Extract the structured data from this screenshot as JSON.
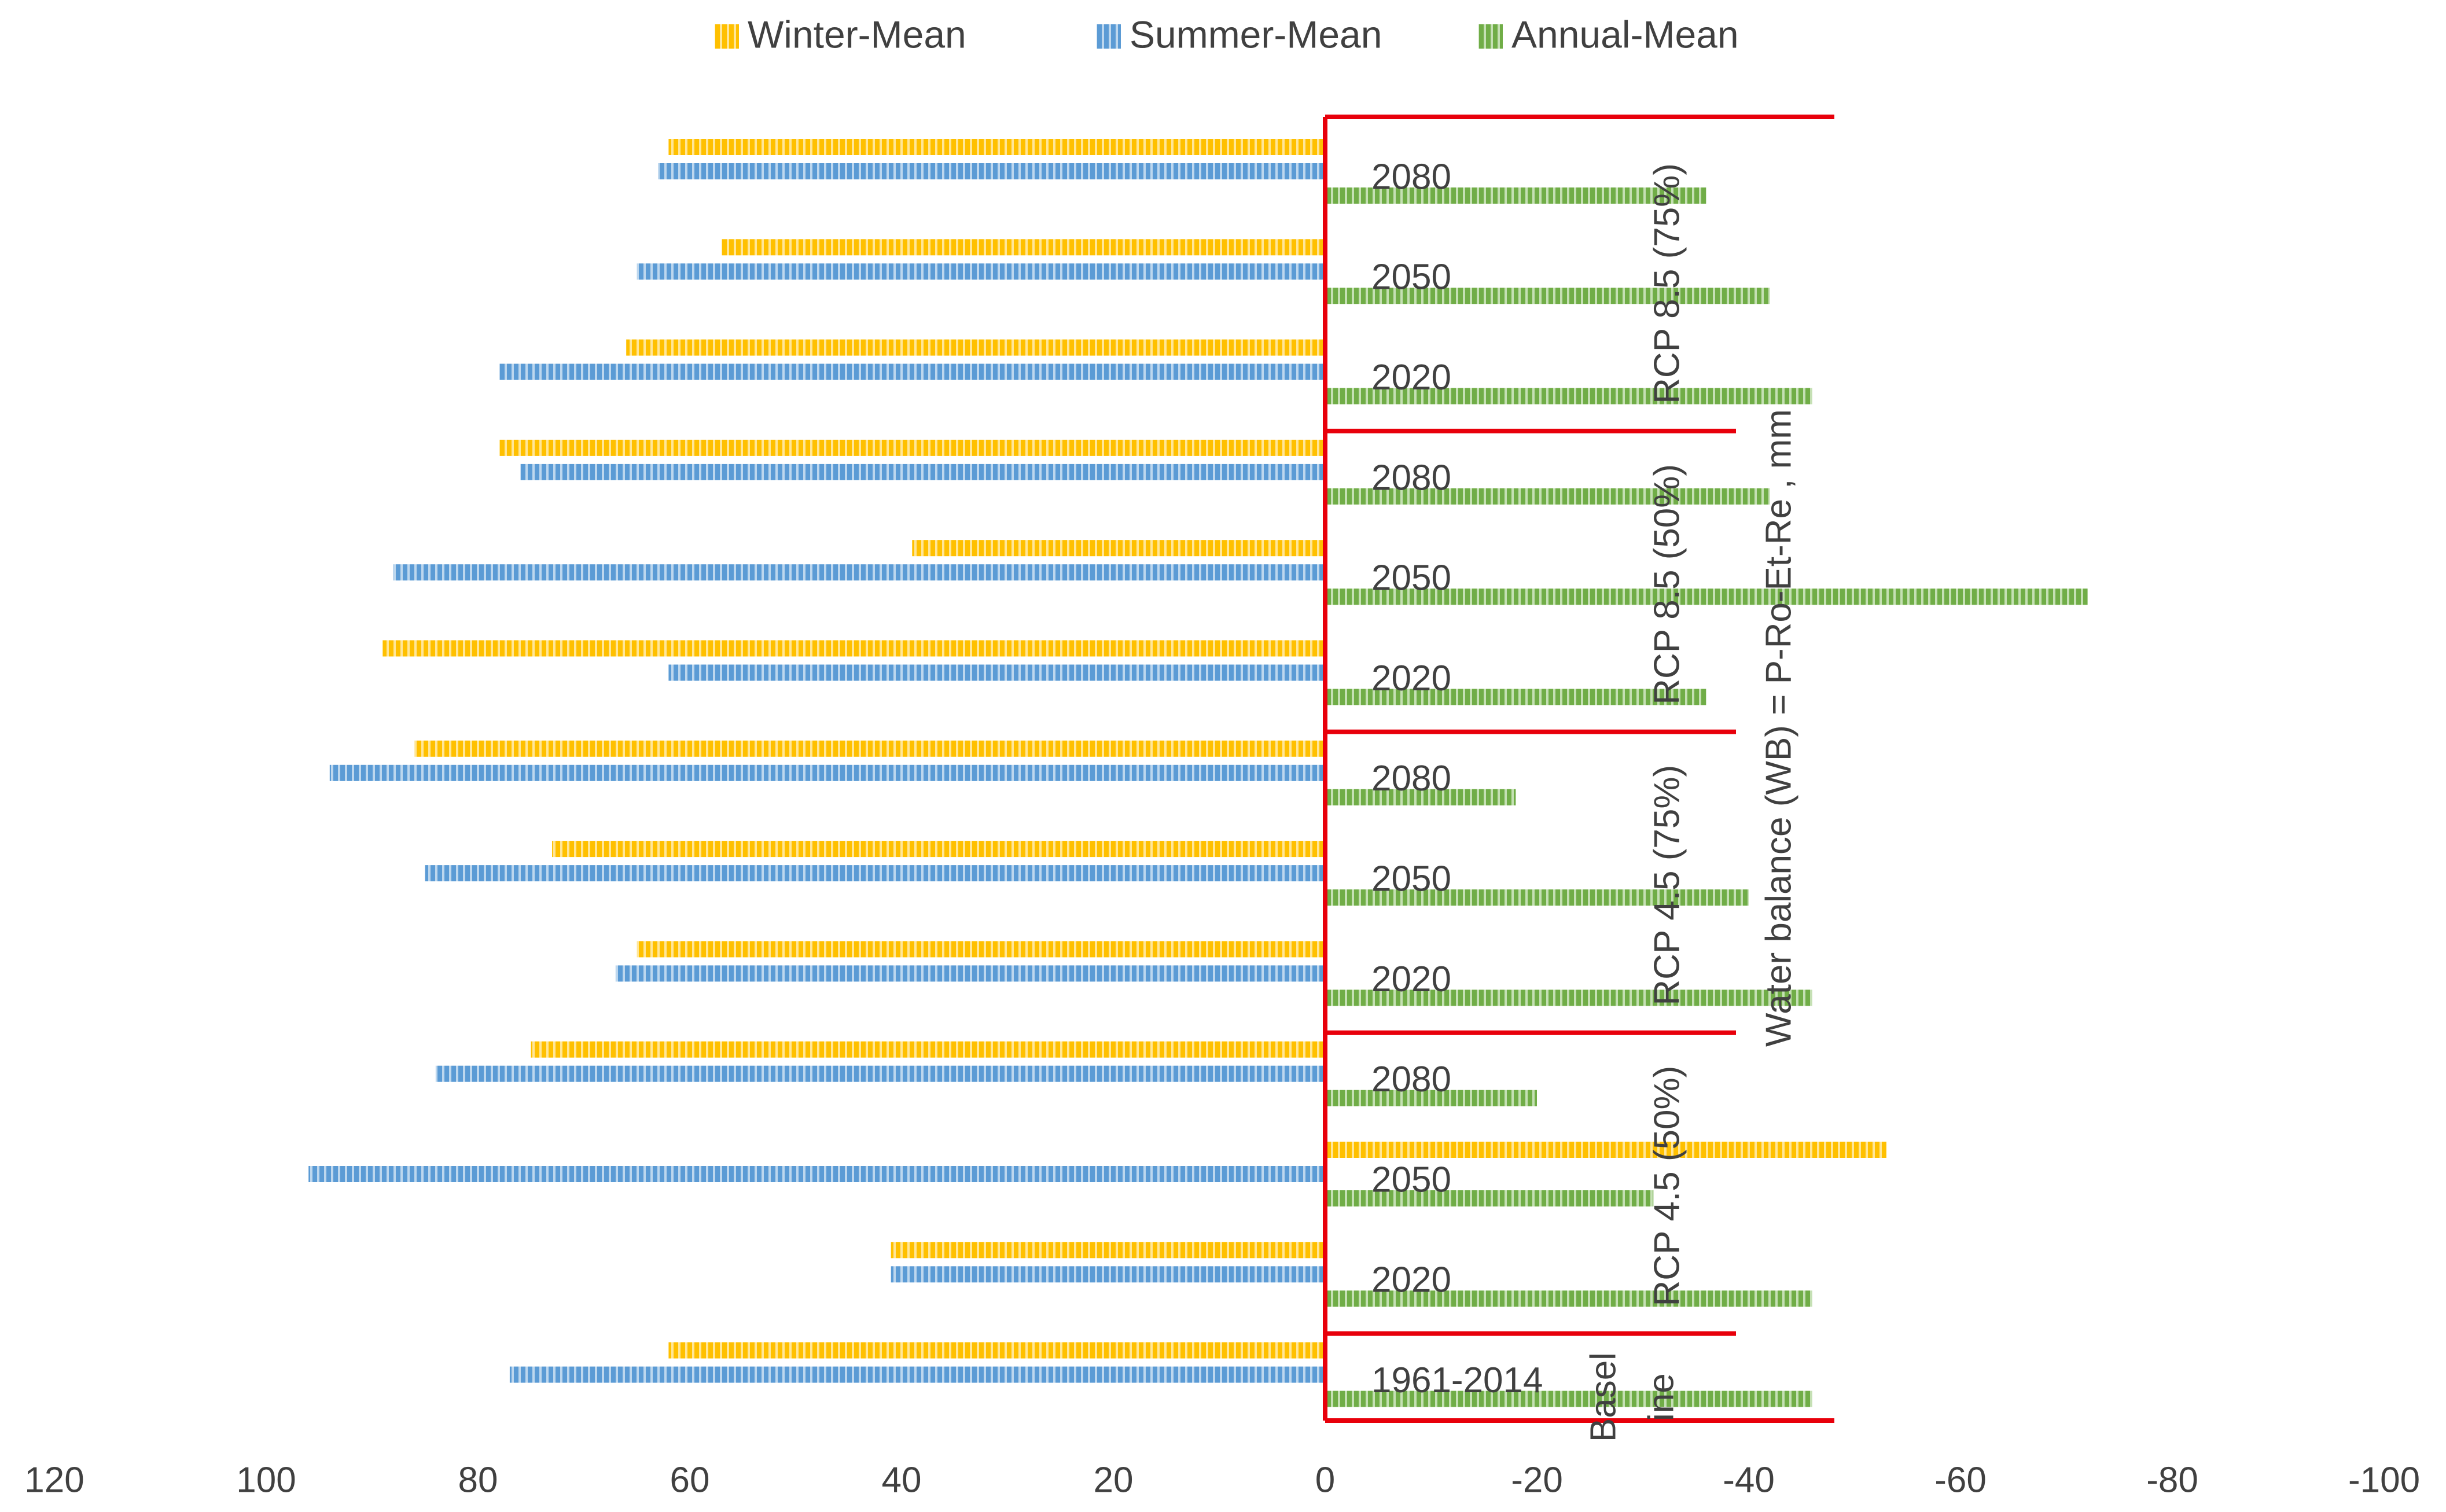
{
  "chart_data": {
    "type": "bar",
    "orientation": "horizontal",
    "x_axis_reversed": true,
    "xlim": [
      -100,
      120
    ],
    "x_ticks": [
      "120",
      "100",
      "80",
      "60",
      "40",
      "20",
      "0",
      "-20",
      "-40",
      "-60",
      "-80",
      "-100"
    ],
    "legend_position": "top",
    "ylabel": "Water balance (WB) = P-Ro-Et-Re , mm",
    "colors": {
      "Winter-Mean": "#FFC000",
      "Summer-Mean": "#5B9BD5",
      "Annual-Mean": "#70AD47",
      "separator": "#E8000B"
    },
    "groups": [
      {
        "name": "RCP 8.5 (75%)",
        "categories": [
          "2080",
          "2050",
          "2020"
        ]
      },
      {
        "name": "RCP 8.5 (50%)",
        "categories": [
          "2080",
          "2050",
          "2020"
        ]
      },
      {
        "name": "RCP 4.5 (75%)",
        "categories": [
          "2080",
          "2050",
          "2020"
        ]
      },
      {
        "name": "RCP 4.5 (50%)",
        "categories": [
          "2080",
          "2050",
          "2020"
        ]
      },
      {
        "name": "Basel ine",
        "name_lines": [
          "Basel",
          "ine"
        ],
        "categories": [
          "1961-2014"
        ]
      }
    ],
    "series": [
      {
        "name": "Winter-Mean",
        "values": [
          62,
          57,
          66,
          78,
          39,
          89,
          86,
          73,
          65,
          75,
          -53,
          41,
          62
        ]
      },
      {
        "name": "Summer-Mean",
        "values": [
          63,
          65,
          78,
          76,
          88,
          62,
          94,
          85,
          67,
          84,
          96,
          41,
          77
        ]
      },
      {
        "name": "Annual-Mean",
        "values": [
          -36,
          -42,
          -46,
          -42,
          -72,
          -36,
          -18,
          -40,
          -46,
          -20,
          -31,
          -46,
          -46
        ]
      }
    ]
  }
}
